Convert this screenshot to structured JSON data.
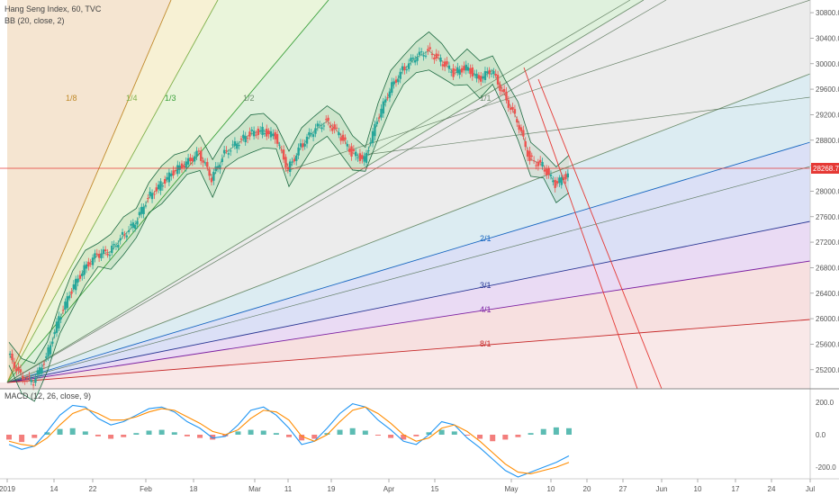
{
  "header": {
    "symbol_line": "Hang Seng Index, 60, TVC",
    "bb_line": "BB (20, close, 2)"
  },
  "macd": {
    "label": "MACD (12, 26, close, 9)"
  },
  "price_badge": {
    "value": "28268.7",
    "color": "#e53935"
  },
  "colors": {
    "up_candle": "#26a69a",
    "down_candle": "#ef5350",
    "bb_line": "#1e6b43",
    "macd_line": "#2196f3",
    "signal_line": "#ff8c00",
    "red_channel": "#e53935"
  },
  "chart_data": [
    {
      "type": "line",
      "title": "Hang Seng Index, 60, TVC",
      "y_range": [
        24900,
        30900
      ],
      "y_ticks": [
        "30800.0",
        "30400.0",
        "30000.0",
        "29600.0",
        "29200.0",
        "28800.0",
        "28400.0",
        "28000.0",
        "27600.0",
        "27200.0",
        "26800.0",
        "26400.0",
        "26000.0",
        "25600.0",
        "25200.0"
      ],
      "x_ticks": [
        "2019",
        "14",
        "22",
        "Feb",
        "18",
        "Mar",
        "11",
        "19",
        "Apr",
        "15",
        "May",
        "10",
        "20",
        "27",
        "Jun",
        "10",
        "17",
        "24",
        "Jul"
      ],
      "last_price": 28268.7,
      "gann_fan_labels": [
        "1/8",
        "1/4",
        "1/3",
        "1/2",
        "1/1",
        "2/1",
        "3/1",
        "4/1",
        "8/1"
      ],
      "series": [
        {
          "name": "Hang Seng Index",
          "points": [
            [
              0,
              25450
            ],
            [
              1,
              25100
            ],
            [
              2,
              25000
            ],
            [
              3,
              25400
            ],
            [
              4,
              26000
            ],
            [
              5,
              26450
            ],
            [
              6,
              26800
            ],
            [
              7,
              27000
            ],
            [
              8,
              27050
            ],
            [
              9,
              27300
            ],
            [
              10,
              27500
            ],
            [
              11,
              27900
            ],
            [
              12,
              28100
            ],
            [
              13,
              28300
            ],
            [
              14,
              28450
            ],
            [
              15,
              28600
            ],
            [
              16,
              28200
            ],
            [
              17,
              28600
            ],
            [
              18,
              28750
            ],
            [
              19,
              28900
            ],
            [
              20,
              28950
            ],
            [
              21,
              28850
            ],
            [
              22,
              28350
            ],
            [
              23,
              28700
            ],
            [
              24,
              28950
            ],
            [
              25,
              29100
            ],
            [
              26,
              28900
            ],
            [
              27,
              28600
            ],
            [
              28,
              28500
            ],
            [
              29,
              29100
            ],
            [
              30,
              29600
            ],
            [
              31,
              29900
            ],
            [
              32,
              30100
            ],
            [
              33,
              30200
            ],
            [
              34,
              30050
            ],
            [
              35,
              29850
            ],
            [
              36,
              29950
            ],
            [
              37,
              29750
            ],
            [
              38,
              29900
            ],
            [
              39,
              29500
            ],
            [
              40,
              29100
            ],
            [
              41,
              28500
            ],
            [
              42,
              28400
            ],
            [
              43,
              28100
            ],
            [
              44,
              28268.7
            ]
          ]
        }
      ]
    },
    {
      "type": "bar",
      "title": "MACD (12, 26, close, 9)",
      "y_range": [
        -260,
        260
      ],
      "y_ticks": [
        "200.0",
        "0.0",
        "-200.0"
      ],
      "series": [
        {
          "name": "histogram",
          "values": [
            -30,
            -45,
            -20,
            15,
            35,
            40,
            20,
            -10,
            -25,
            -15,
            10,
            25,
            30,
            15,
            -10,
            -20,
            -30,
            -10,
            20,
            30,
            25,
            10,
            -15,
            -35,
            -25,
            10,
            30,
            40,
            25,
            -5,
            -20,
            -30,
            -10,
            15,
            30,
            20,
            -5,
            -25,
            -40,
            -30,
            -15,
            10,
            35,
            45,
            40
          ]
        },
        {
          "name": "macd",
          "values": [
            -60,
            -90,
            -70,
            20,
            120,
            180,
            170,
            100,
            60,
            80,
            120,
            160,
            170,
            140,
            80,
            40,
            -20,
            -10,
            60,
            150,
            170,
            120,
            40,
            -60,
            -40,
            40,
            130,
            190,
            170,
            90,
            30,
            -40,
            -60,
            0,
            80,
            60,
            -20,
            -80,
            -150,
            -220,
            -260,
            -230,
            -200,
            -170,
            -130
          ]
        },
        {
          "name": "signal",
          "values": [
            -40,
            -60,
            -70,
            -20,
            60,
            130,
            160,
            130,
            90,
            90,
            110,
            140,
            160,
            150,
            110,
            70,
            20,
            0,
            30,
            100,
            150,
            140,
            90,
            -10,
            -40,
            0,
            80,
            150,
            170,
            130,
            70,
            0,
            -40,
            -20,
            40,
            60,
            20,
            -40,
            -110,
            -180,
            -230,
            -240,
            -220,
            -200,
            -170
          ]
        }
      ]
    }
  ]
}
